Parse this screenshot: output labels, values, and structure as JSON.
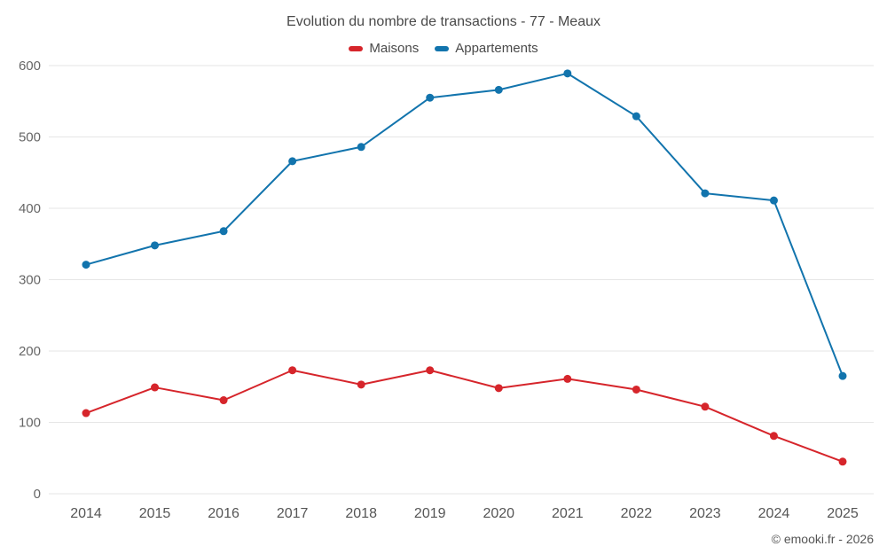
{
  "chart_data": {
    "type": "line",
    "title": "Evolution du nombre de transactions - 77 - Meaux",
    "categories": [
      "2014",
      "2015",
      "2016",
      "2017",
      "2018",
      "2019",
      "2020",
      "2021",
      "2022",
      "2023",
      "2024",
      "2025"
    ],
    "series": [
      {
        "name": "Maisons",
        "color": "#d6252b",
        "values": [
          113,
          149,
          131,
          173,
          153,
          173,
          148,
          161,
          146,
          122,
          81,
          45
        ]
      },
      {
        "name": "Appartements",
        "color": "#1274ad",
        "values": [
          321,
          348,
          368,
          466,
          486,
          555,
          566,
          589,
          529,
          421,
          411,
          165
        ]
      }
    ],
    "xlabel": "",
    "ylabel": "",
    "ylim": [
      0,
      600
    ],
    "yticks": [
      0,
      100,
      200,
      300,
      400,
      500,
      600
    ],
    "grid": true,
    "legend_position": "top",
    "copyright": "© emooki.fr - 2026",
    "colors": {
      "grid": "#e6e6e6",
      "axis_text": "#666666",
      "title_text": "#4a4a4a"
    }
  }
}
